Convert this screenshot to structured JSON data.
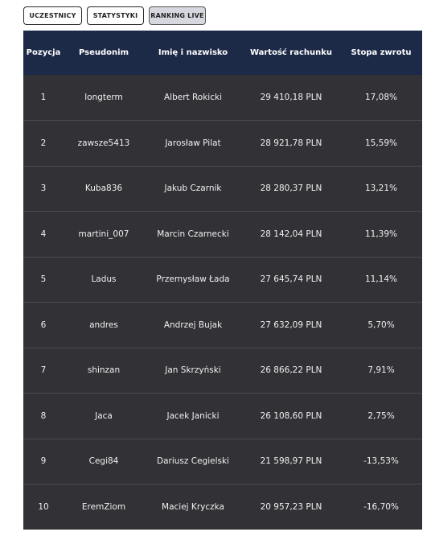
{
  "tabs": [
    {
      "label": "UCZESTNICY"
    },
    {
      "label": "STATYSTYKI"
    },
    {
      "label": "RANKING LIVE"
    }
  ],
  "table": {
    "headers": [
      "Pozycja",
      "Pseudonim",
      "Imię i nazwisko",
      "Wartość rachunku",
      "Stopa zwrotu"
    ],
    "rows": [
      [
        "1",
        "longterm",
        "Albert Rokicki",
        "29 410,18 PLN",
        "17,08%"
      ],
      [
        "2",
        "zawsze5413",
        "Jarosław Pilat",
        "28 921,78 PLN",
        "15,59%"
      ],
      [
        "3",
        "Kuba836",
        "Jakub Czarnik",
        "28 280,37 PLN",
        "13,21%"
      ],
      [
        "4",
        "martini_007",
        "Marcin Czarnecki",
        "28 142,04 PLN",
        "11,39%"
      ],
      [
        "5",
        "Ladus",
        "Przemysław Łada",
        "27 645,74 PLN",
        "11,14%"
      ],
      [
        "6",
        "andres",
        "Andrzej Bujak",
        "27 632,09 PLN",
        "5,70%"
      ],
      [
        "7",
        "shinzan",
        "Jan Skrzyński",
        "26 866,22 PLN",
        "7,91%"
      ],
      [
        "8",
        "Jaca",
        "Jacek Janicki",
        "26 108,60 PLN",
        "2,75%"
      ],
      [
        "9",
        "Cegi84",
        "Dariusz Cegielski",
        "21 598,97 PLN",
        "-13,53%"
      ],
      [
        "10",
        "EremZiom",
        "Maciej Kryczka",
        "20 957,23 PLN",
        "-16,70%"
      ]
    ]
  },
  "colors": {
    "header_bg": "#1c2947",
    "row_bg": "#313136",
    "active_tab_bg": "#d7d8df"
  }
}
